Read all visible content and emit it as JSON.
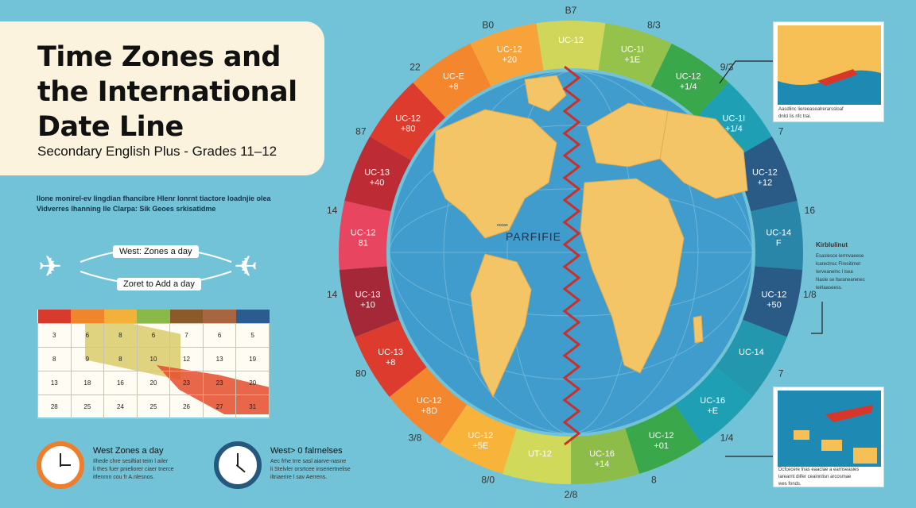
{
  "header": {
    "title_line1": "Time Zones and",
    "title_line2": "the International",
    "title_line3": "Date Line",
    "subtitle": "Secondary English Plus - Grades 11–12"
  },
  "intro": {
    "line1": "Ilone monirel-ev lingdian fhancibre Hlenr lonrnt tiactore loadnjie olea",
    "line2": "Vidverres lhanning lle Clarpa: Sik Geoes srkisatidme"
  },
  "travel": {
    "west_label": "West: Zones a day",
    "east_label": "Zoret to Add a day"
  },
  "calendar": {
    "header_colors": [
      "#d83b2c",
      "#f0862b",
      "#f4b13a",
      "#8ab94a",
      "#8b5a2b",
      "#a86540",
      "#2d97c4",
      "#2b5c8f"
    ],
    "rows": [
      [
        "3",
        "6",
        "8",
        "6",
        "7",
        "6",
        "5"
      ],
      [
        "8",
        "9",
        "8",
        "10",
        "12",
        "13",
        "19"
      ],
      [
        "13",
        "18",
        "16",
        "20",
        "23",
        "23",
        "20"
      ],
      [
        "28",
        "25",
        "24",
        "25",
        "26",
        "27",
        "31"
      ]
    ]
  },
  "clocks": {
    "west": {
      "title": "West Zones a day",
      "note_line1": "Ilhede chre sesiftiat teim l ailer",
      "note_line2": "li thes fuer pnieliorer ciaer tnerce",
      "note_line3": "itfenrnn cou fr A.nlesnos."
    },
    "east": {
      "title": "West> 0 falrnelses",
      "note_line1": "Aec frhe trre sasl aiarve-nasne",
      "note_line2": "li Stelvler orsrtcee inseriertnelise",
      "note_line3": "iltriaerire l sav Aerrens."
    }
  },
  "globe": {
    "center_label": "PARFIFIE",
    "small_label": "ocean",
    "land_color": "#f4c566",
    "ocean_color": "#3f9ccc",
    "date_line_color": "#c9302c",
    "zones": [
      {
        "label": "UC-12",
        "sub": "",
        "color": "#cfd65a"
      },
      {
        "label": "UC-1I",
        "sub": "+1E",
        "color": "#95c24a"
      },
      {
        "label": "UC-12",
        "sub": "+1/4",
        "color": "#3aa74a"
      },
      {
        "label": "UC-1I",
        "sub": "+1/4",
        "color": "#1f9fb3"
      },
      {
        "label": "UC-12",
        "sub": "+12",
        "color": "#2a5a86"
      },
      {
        "label": "UC-14",
        "sub": "F",
        "color": "#2a86a9"
      },
      {
        "label": "UC-12",
        "sub": "+50",
        "color": "#2a5a86"
      },
      {
        "label": "UC-14",
        "sub": "",
        "color": "#2397ad"
      },
      {
        "label": "UC-16",
        "sub": "+E",
        "color": "#1f9fb3"
      },
      {
        "label": "UC-12",
        "sub": "+01",
        "color": "#3aa74a"
      },
      {
        "label": "UC-16",
        "sub": "+14",
        "color": "#8dbd48"
      },
      {
        "label": "UT-12",
        "sub": "",
        "color": "#d1d95b"
      },
      {
        "label": "UC-12",
        "sub": "+5E",
        "color": "#f8b33a"
      },
      {
        "label": "UC-12",
        "sub": "+8D",
        "color": "#f4862d"
      },
      {
        "label": "UC-13",
        "sub": "+8",
        "color": "#dd3b2e"
      },
      {
        "label": "UC-13",
        "sub": "+10",
        "color": "#a52838"
      },
      {
        "label": "UC-12",
        "sub": "81",
        "color": "#e74560"
      },
      {
        "label": "UC-13",
        "sub": "+40",
        "color": "#bd2c34"
      },
      {
        "label": "UC-12",
        "sub": "+80",
        "color": "#dd3b2e"
      },
      {
        "label": "UC-E",
        "sub": "+8",
        "color": "#f4862d"
      },
      {
        "label": "UC-12",
        "sub": "+20",
        "color": "#f8a339"
      }
    ],
    "outer_numbers": [
      "B7",
      "8/3",
      "9/3",
      "7",
      "16",
      "1/8",
      "7",
      "1/4",
      "8",
      "2/8",
      "8/0",
      "3/8",
      "80",
      "14",
      "14",
      "87",
      "22",
      "B0"
    ]
  },
  "insets": {
    "top_note_line1": "Aasdlinc liereeasealrerarssloaf",
    "top_note_line2": "dnlcl lis nfc trai.",
    "bottom_note_line1": "Dcfcecere lnas eaaclae a earnseasies",
    "bottom_note_line2": "larearnt diifer ceainnlisn arcosmae",
    "bottom_note_line3": "wes fonds."
  },
  "side": {
    "title": "Kirblulinut",
    "line1": "Esaslesce lerrnvaeese",
    "line2": "lcareclnsc Firesitimet",
    "line3": "Ierveanelnc l lsea",
    "line4": "Nasle se ltaranearenec",
    "line5": "leirlaaseess."
  }
}
